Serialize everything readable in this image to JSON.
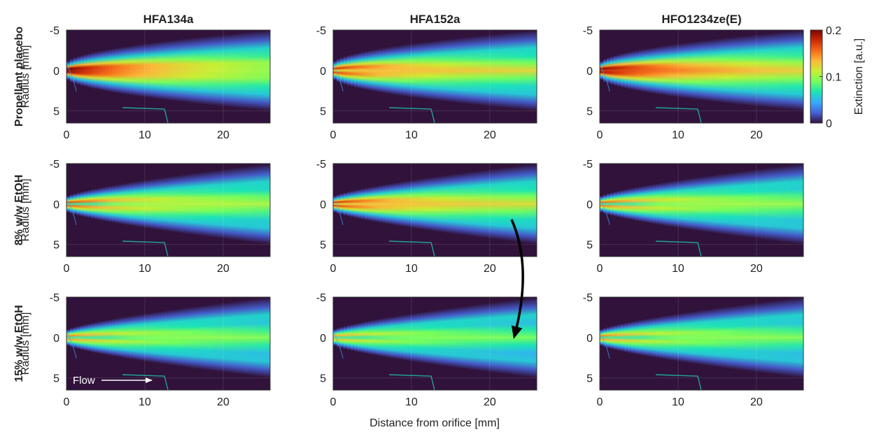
{
  "chart_data": {
    "type": "heatmap",
    "columns": [
      "HFA134a",
      "HFA152a",
      "HFO1234ze(E)"
    ],
    "rows": [
      "Propellant placebo",
      "8% w/w EtOH",
      "15% w/w EtOH"
    ],
    "xlabel": "Distance from orifice [mm]",
    "ylabel": "Radius [mm]",
    "xlim": [
      0,
      26
    ],
    "ylim": [
      -5,
      6.5
    ],
    "xticks": [
      0,
      10,
      20
    ],
    "yticks": [
      -5,
      0,
      5
    ],
    "colorbar": {
      "label": "Extinction [a.u.]",
      "min": 0,
      "max": 0.2,
      "ticks": [
        0,
        0.1,
        0.2
      ],
      "colors": [
        "#30123b",
        "#4662d7",
        "#36aaf9",
        "#1ae4b6",
        "#72fe5e",
        "#c8ef34",
        "#faba39",
        "#f66b19",
        "#ca2a04",
        "#7a0403"
      ]
    },
    "panels": [
      {
        "row": 0,
        "col": 0,
        "peak": 0.2,
        "hollow": 0.0,
        "fill": 0.95,
        "axis_value": 0.1
      },
      {
        "row": 0,
        "col": 1,
        "peak": 0.18,
        "hollow": 0.35,
        "fill": 0.8,
        "axis_value": 0.13
      },
      {
        "row": 0,
        "col": 2,
        "peak": 0.2,
        "hollow": 0.1,
        "fill": 0.9,
        "axis_value": 0.1
      },
      {
        "row": 1,
        "col": 0,
        "peak": 0.17,
        "hollow": 0.8,
        "fill": 0.3,
        "axis_value": 0.09
      },
      {
        "row": 1,
        "col": 1,
        "peak": 0.18,
        "hollow": 0.35,
        "fill": 0.75,
        "axis_value": 0.12
      },
      {
        "row": 1,
        "col": 2,
        "peak": 0.16,
        "hollow": 0.8,
        "fill": 0.3,
        "axis_value": 0.09
      },
      {
        "row": 2,
        "col": 0,
        "peak": 0.15,
        "hollow": 0.85,
        "fill": 0.2,
        "axis_value": 0.09
      },
      {
        "row": 2,
        "col": 1,
        "peak": 0.14,
        "hollow": 0.7,
        "fill": 0.2,
        "axis_value": 0.09
      },
      {
        "row": 2,
        "col": 2,
        "peak": 0.15,
        "hollow": 0.85,
        "fill": 0.2,
        "axis_value": 0.09
      }
    ],
    "annotations": [
      {
        "text": "Flow",
        "panel_row": 2,
        "panel_col": 0,
        "arrow": "right"
      },
      {
        "panel_row": 1,
        "panel_col": 1,
        "arrow": "curved-down",
        "to_row": 2
      }
    ]
  }
}
